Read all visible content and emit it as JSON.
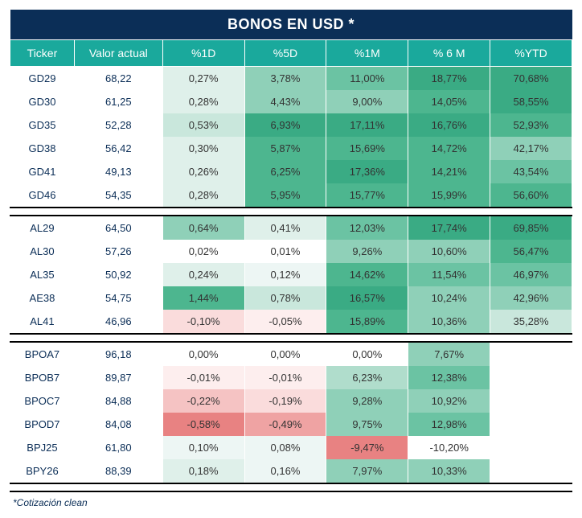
{
  "title": "BONOS EN USD *",
  "footnote": "*Cotización clean",
  "columns": [
    "Ticker",
    "Valor actual",
    "%1D",
    "%5D",
    "%1M",
    "% 6 M",
    "%YTD"
  ],
  "colors": {
    "title_bg": "#0b2e57",
    "header_bg": "#1aa99c",
    "header_fg": "#ffffff",
    "text": "#333333",
    "ticker_fg": "#0b2e57"
  },
  "heat_scale": {
    "pos": [
      "#ffffff",
      "#edf6f4",
      "#dff0ea",
      "#c9e7dc",
      "#b0ddcc",
      "#8fd0b8",
      "#6bc3a3",
      "#4db68f",
      "#3aab84"
    ],
    "neg": [
      "#ffffff",
      "#fdeeee",
      "#fadcdc",
      "#f5c3c3",
      "#efa3a3",
      "#e88282"
    ],
    "blank": "#ffffff"
  },
  "groups": [
    {
      "rows": [
        {
          "ticker": "GD29",
          "val": "68,22",
          "cells": [
            {
              "v": "0,27%",
              "h": 2
            },
            {
              "v": "3,78%",
              "h": 5
            },
            {
              "v": "11,00%",
              "h": 6
            },
            {
              "v": "18,77%",
              "h": 8
            },
            {
              "v": "70,68%",
              "h": 8
            }
          ]
        },
        {
          "ticker": "GD30",
          "val": "61,25",
          "cells": [
            {
              "v": "0,28%",
              "h": 2
            },
            {
              "v": "4,43%",
              "h": 5
            },
            {
              "v": "9,00%",
              "h": 5
            },
            {
              "v": "14,05%",
              "h": 7
            },
            {
              "v": "58,55%",
              "h": 8
            }
          ]
        },
        {
          "ticker": "GD35",
          "val": "52,28",
          "cells": [
            {
              "v": "0,53%",
              "h": 3
            },
            {
              "v": "6,93%",
              "h": 8
            },
            {
              "v": "17,11%",
              "h": 8
            },
            {
              "v": "16,76%",
              "h": 8
            },
            {
              "v": "52,93%",
              "h": 7
            }
          ]
        },
        {
          "ticker": "GD38",
          "val": "56,42",
          "cells": [
            {
              "v": "0,30%",
              "h": 2
            },
            {
              "v": "5,87%",
              "h": 7
            },
            {
              "v": "15,69%",
              "h": 7
            },
            {
              "v": "14,72%",
              "h": 7
            },
            {
              "v": "42,17%",
              "h": 5
            }
          ]
        },
        {
          "ticker": "GD41",
          "val": "49,13",
          "cells": [
            {
              "v": "0,26%",
              "h": 2
            },
            {
              "v": "6,25%",
              "h": 7
            },
            {
              "v": "17,36%",
              "h": 8
            },
            {
              "v": "14,21%",
              "h": 7
            },
            {
              "v": "43,54%",
              "h": 6
            }
          ]
        },
        {
          "ticker": "GD46",
          "val": "54,35",
          "cells": [
            {
              "v": "0,28%",
              "h": 2
            },
            {
              "v": "5,95%",
              "h": 7
            },
            {
              "v": "15,77%",
              "h": 7
            },
            {
              "v": "15,99%",
              "h": 7
            },
            {
              "v": "56,60%",
              "h": 7
            }
          ]
        }
      ]
    },
    {
      "rows": [
        {
          "ticker": "AL29",
          "val": "64,50",
          "cells": [
            {
              "v": "0,64%",
              "h": 5
            },
            {
              "v": "0,41%",
              "h": 2
            },
            {
              "v": "12,03%",
              "h": 6
            },
            {
              "v": "17,74%",
              "h": 8
            },
            {
              "v": "69,85%",
              "h": 8
            }
          ]
        },
        {
          "ticker": "AL30",
          "val": "57,26",
          "cells": [
            {
              "v": "0,02%",
              "h": 0
            },
            {
              "v": "0,01%",
              "h": 0
            },
            {
              "v": "9,26%",
              "h": 5
            },
            {
              "v": "10,60%",
              "h": 5
            },
            {
              "v": "56,47%",
              "h": 7
            }
          ]
        },
        {
          "ticker": "AL35",
          "val": "50,92",
          "cells": [
            {
              "v": "0,24%",
              "h": 2
            },
            {
              "v": "0,12%",
              "h": 1
            },
            {
              "v": "14,62%",
              "h": 7
            },
            {
              "v": "11,54%",
              "h": 6
            },
            {
              "v": "46,97%",
              "h": 6
            }
          ]
        },
        {
          "ticker": "AE38",
          "val": "54,75",
          "cells": [
            {
              "v": "1,44%",
              "h": 7
            },
            {
              "v": "0,78%",
              "h": 3
            },
            {
              "v": "16,57%",
              "h": 8
            },
            {
              "v": "10,24%",
              "h": 5
            },
            {
              "v": "42,96%",
              "h": 5
            }
          ]
        },
        {
          "ticker": "AL41",
          "val": "46,96",
          "cells": [
            {
              "v": "-0,10%",
              "h": -2
            },
            {
              "v": "-0,05%",
              "h": -1
            },
            {
              "v": "15,89%",
              "h": 7
            },
            {
              "v": "10,36%",
              "h": 5
            },
            {
              "v": "35,28%",
              "h": 3
            }
          ]
        }
      ]
    },
    {
      "rows": [
        {
          "ticker": "BPOA7",
          "val": "96,18",
          "cells": [
            {
              "v": "0,00%",
              "h": 0
            },
            {
              "v": "0,00%",
              "h": 0
            },
            {
              "v": "0,00%",
              "h": 0
            },
            {
              "v": "7,67%",
              "h": 5
            },
            {
              "v": "",
              "h": null
            }
          ]
        },
        {
          "ticker": "BPOB7",
          "val": "89,87",
          "cells": [
            {
              "v": "-0,01%",
              "h": -1
            },
            {
              "v": "-0,01%",
              "h": -1
            },
            {
              "v": "6,23%",
              "h": 4
            },
            {
              "v": "12,38%",
              "h": 6
            },
            {
              "v": "",
              "h": null
            }
          ]
        },
        {
          "ticker": "BPOC7",
          "val": "84,88",
          "cells": [
            {
              "v": "-0,22%",
              "h": -3
            },
            {
              "v": "-0,19%",
              "h": -2
            },
            {
              "v": "9,28%",
              "h": 5
            },
            {
              "v": "10,92%",
              "h": 5
            },
            {
              "v": "",
              "h": null
            }
          ]
        },
        {
          "ticker": "BPOD7",
          "val": "84,08",
          "cells": [
            {
              "v": "-0,58%",
              "h": -5
            },
            {
              "v": "-0,49%",
              "h": -4
            },
            {
              "v": "9,75%",
              "h": 5
            },
            {
              "v": "12,98%",
              "h": 6
            },
            {
              "v": "",
              "h": null
            }
          ]
        },
        {
          "ticker": "BPJ25",
          "val": "61,80",
          "cells": [
            {
              "v": "0,10%",
              "h": 1
            },
            {
              "v": "0,08%",
              "h": 1
            },
            {
              "v": "-9,47%",
              "h": -5
            },
            {
              "v": "-10,20%",
              "h": 0
            },
            {
              "v": "",
              "h": null
            }
          ]
        },
        {
          "ticker": "BPY26",
          "val": "88,39",
          "cells": [
            {
              "v": "0,18%",
              "h": 2
            },
            {
              "v": "0,16%",
              "h": 1
            },
            {
              "v": "7,97%",
              "h": 5
            },
            {
              "v": "10,33%",
              "h": 5
            },
            {
              "v": "",
              "h": null
            }
          ]
        }
      ]
    }
  ]
}
